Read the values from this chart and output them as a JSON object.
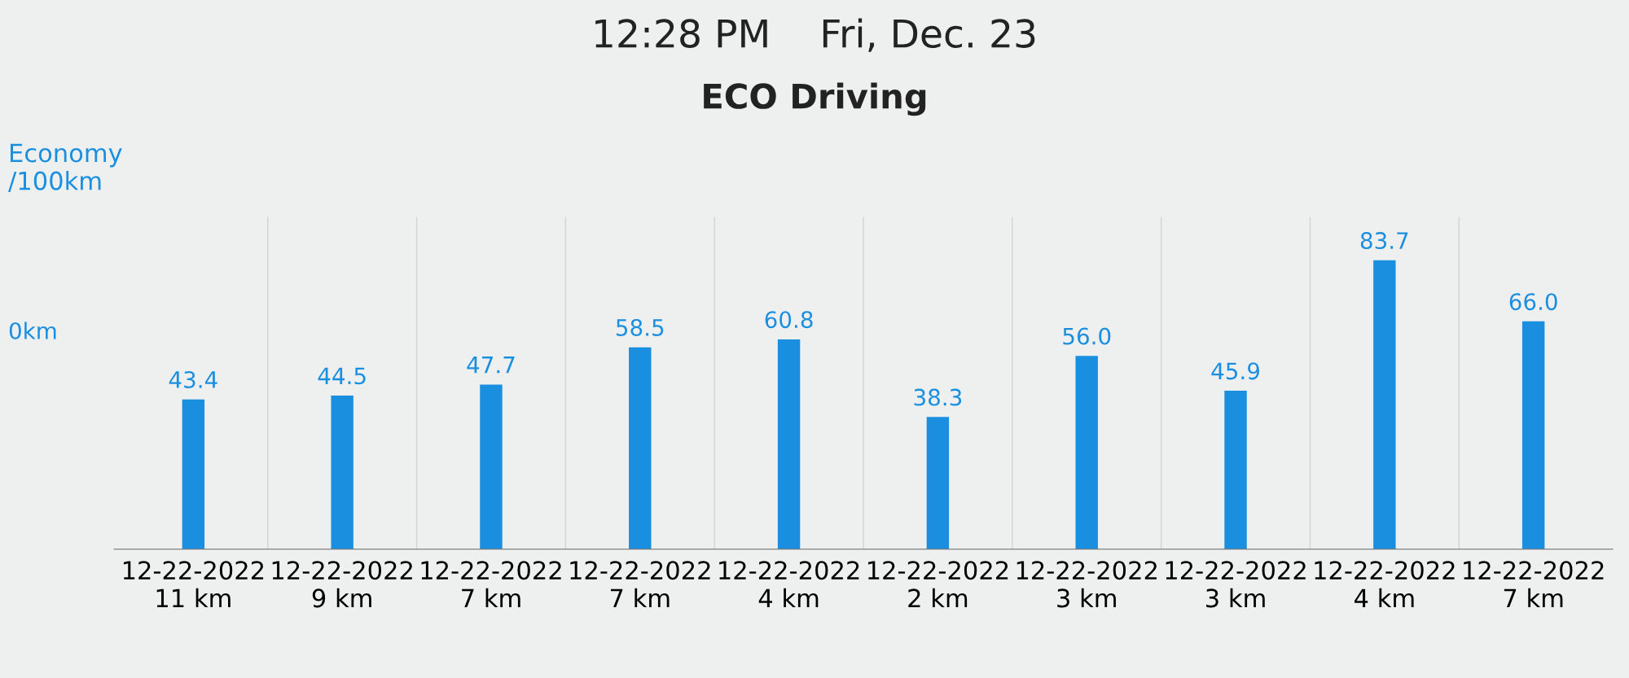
{
  "chart_data": {
    "type": "bar",
    "title": "ECO Driving",
    "subtitle": "12:28 PM    Fri, Dec. 23",
    "ylabel": "Economy\n/100km",
    "annotations": [
      "0km"
    ],
    "categories": [
      "12-22-2022\n11 km",
      "12-22-2022\n9 km",
      "12-22-2022\n7 km",
      "12-22-2022\n7 km",
      "12-22-2022\n4 km",
      "12-22-2022\n2 km",
      "12-22-2022\n3 km",
      "12-22-2022\n3 km",
      "12-22-2022\n4 km",
      "12-22-2022\n7 km"
    ],
    "values": [
      43.4,
      44.5,
      47.7,
      58.5,
      60.8,
      38.3,
      56.0,
      45.9,
      83.7,
      66.0
    ],
    "value_labels": [
      "43.4",
      "44.5",
      "47.7",
      "58.5",
      "60.8",
      "38.3",
      "56.0",
      "45.9",
      "83.7",
      "66.0"
    ],
    "color": "#1a8fe0",
    "tick_labels": "x",
    "grid": false,
    "legend": false
  }
}
